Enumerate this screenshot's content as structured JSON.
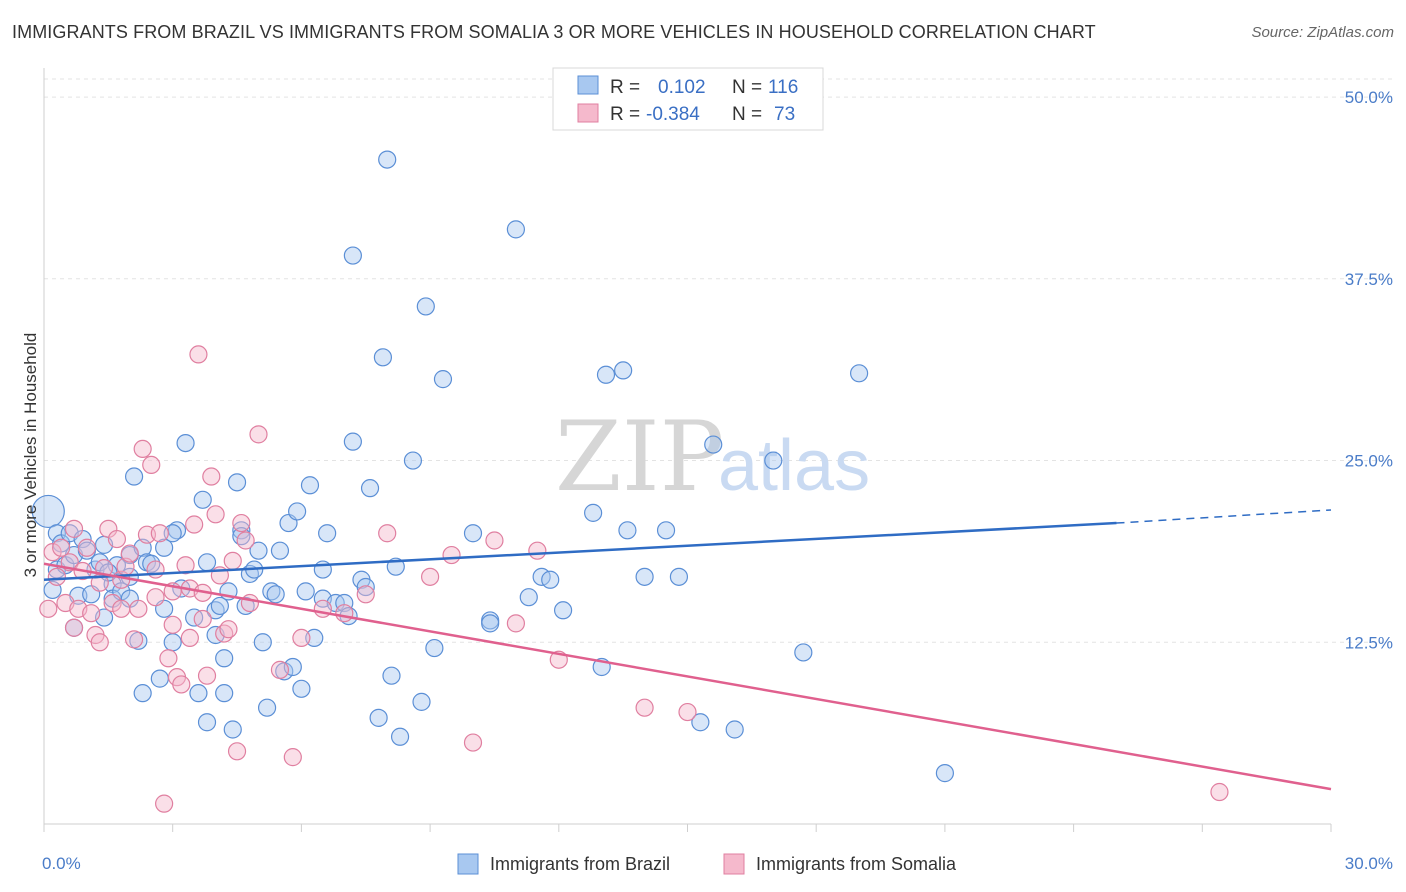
{
  "title": "IMMIGRANTS FROM BRAZIL VS IMMIGRANTS FROM SOMALIA 3 OR MORE VEHICLES IN HOUSEHOLD CORRELATION CHART",
  "source": "Source: ZipAtlas.com",
  "watermark": {
    "zip": "ZIP",
    "atlas": "atlas"
  },
  "legend": {
    "rows": [
      {
        "r_label": "R =",
        "r_value": "0.102",
        "n_label": "N =",
        "n_value": "116"
      },
      {
        "r_label": "R =",
        "r_value": "-0.384",
        "n_label": "N =",
        "n_value": "73"
      }
    ]
  },
  "colors": {
    "brazil_fill": "#a8c8f0",
    "brazil_stroke": "#5b8fd6",
    "brazil_line": "#2f6cc4",
    "somalia_fill": "#f5b9cc",
    "somalia_stroke": "#e07fa0",
    "somalia_line": "#e0608e",
    "grid": "#e3e3e3",
    "tick_label": "#4a7cc8"
  },
  "chart_data": {
    "type": "scatter",
    "title": "IMMIGRANTS FROM BRAZIL VS IMMIGRANTS FROM SOMALIA 3 OR MORE VEHICLES IN HOUSEHOLD CORRELATION CHART",
    "xlabel": "",
    "ylabel": "3 or more Vehicles in Household",
    "xlim": [
      0,
      30
    ],
    "ylim": [
      0,
      52
    ],
    "x_tick_labels": [
      "0.0%",
      "30.0%"
    ],
    "y_ticks": [
      12.5,
      25,
      37.5,
      50
    ],
    "y_tick_labels": [
      "12.5%",
      "25.0%",
      "37.5%",
      "50.0%"
    ],
    "grid": true,
    "legend_position": "top-center",
    "series": [
      {
        "name": "Immigrants from Brazil",
        "r": 0.102,
        "n": 116,
        "trend": {
          "x": [
            0,
            25
          ],
          "y": [
            16.8,
            20.7
          ],
          "dashed_extension": {
            "x": [
              25,
              30
            ],
            "y": [
              20.7,
              21.6
            ]
          }
        },
        "points": [
          [
            0.1,
            21.5
          ],
          [
            0.2,
            16.1
          ],
          [
            0.3,
            20.0
          ],
          [
            0.3,
            17.5
          ],
          [
            0.4,
            19.3
          ],
          [
            0.5,
            17.8
          ],
          [
            0.6,
            20.0
          ],
          [
            0.7,
            18.5
          ],
          [
            0.7,
            13.5
          ],
          [
            0.8,
            15.7
          ],
          [
            0.9,
            19.6
          ],
          [
            1.0,
            18.8
          ],
          [
            1.1,
            15.8
          ],
          [
            1.2,
            17.5
          ],
          [
            1.3,
            18.0
          ],
          [
            1.4,
            19.2
          ],
          [
            1.4,
            14.2
          ],
          [
            1.6,
            16.5
          ],
          [
            1.6,
            15.5
          ],
          [
            1.7,
            17.8
          ],
          [
            1.8,
            16.0
          ],
          [
            2.0,
            18.5
          ],
          [
            2.0,
            15.5
          ],
          [
            2.1,
            23.9
          ],
          [
            2.2,
            12.6
          ],
          [
            2.3,
            9.0
          ],
          [
            2.3,
            19.0
          ],
          [
            2.4,
            18.0
          ],
          [
            2.5,
            17.9
          ],
          [
            2.7,
            10.0
          ],
          [
            2.8,
            14.8
          ],
          [
            2.8,
            19.0
          ],
          [
            3.0,
            12.5
          ],
          [
            3.1,
            20.2
          ],
          [
            3.2,
            16.2
          ],
          [
            3.3,
            26.2
          ],
          [
            3.5,
            14.2
          ],
          [
            3.6,
            9.0
          ],
          [
            3.7,
            22.3
          ],
          [
            3.8,
            7.0
          ],
          [
            3.8,
            18.0
          ],
          [
            4.0,
            14.7
          ],
          [
            4.0,
            13.0
          ],
          [
            4.1,
            15.0
          ],
          [
            4.2,
            11.4
          ],
          [
            4.2,
            9.0
          ],
          [
            4.3,
            16.0
          ],
          [
            4.4,
            6.5
          ],
          [
            4.5,
            23.5
          ],
          [
            4.6,
            20.2
          ],
          [
            4.6,
            19.8
          ],
          [
            4.7,
            15.0
          ],
          [
            4.8,
            17.2
          ],
          [
            4.9,
            17.5
          ],
          [
            5.0,
            18.8
          ],
          [
            5.1,
            12.5
          ],
          [
            5.2,
            8.0
          ],
          [
            5.3,
            16.0
          ],
          [
            5.4,
            15.8
          ],
          [
            5.5,
            18.8
          ],
          [
            5.6,
            10.5
          ],
          [
            5.7,
            20.7
          ],
          [
            5.8,
            10.8
          ],
          [
            5.9,
            21.5
          ],
          [
            6.0,
            9.3
          ],
          [
            6.1,
            16.0
          ],
          [
            6.2,
            23.3
          ],
          [
            6.3,
            12.8
          ],
          [
            6.5,
            15.5
          ],
          [
            6.5,
            17.5
          ],
          [
            6.6,
            20.0
          ],
          [
            6.8,
            15.2
          ],
          [
            7.0,
            15.2
          ],
          [
            7.1,
            14.3
          ],
          [
            7.2,
            26.3
          ],
          [
            7.2,
            39.1
          ],
          [
            7.4,
            16.8
          ],
          [
            7.5,
            16.3
          ],
          [
            7.6,
            23.1
          ],
          [
            7.8,
            7.3
          ],
          [
            7.9,
            32.1
          ],
          [
            8.0,
            45.7
          ],
          [
            8.1,
            10.2
          ],
          [
            8.2,
            17.7
          ],
          [
            8.3,
            6.0
          ],
          [
            8.6,
            25.0
          ],
          [
            8.8,
            8.4
          ],
          [
            8.9,
            35.6
          ],
          [
            9.1,
            12.1
          ],
          [
            9.3,
            30.6
          ],
          [
            10.0,
            20.0
          ],
          [
            10.4,
            14.0
          ],
          [
            10.4,
            13.8
          ],
          [
            11.0,
            40.9
          ],
          [
            11.3,
            15.6
          ],
          [
            11.6,
            17.0
          ],
          [
            11.8,
            16.8
          ],
          [
            12.1,
            14.7
          ],
          [
            12.8,
            21.4
          ],
          [
            13.0,
            10.8
          ],
          [
            13.1,
            30.9
          ],
          [
            13.5,
            31.2
          ],
          [
            13.6,
            20.2
          ],
          [
            14.0,
            17.0
          ],
          [
            14.5,
            20.2
          ],
          [
            14.8,
            17.0
          ],
          [
            15.3,
            7.0
          ],
          [
            15.6,
            26.1
          ],
          [
            16.1,
            6.5
          ],
          [
            17.0,
            25.0
          ],
          [
            17.7,
            11.8
          ],
          [
            19.0,
            31.0
          ],
          [
            21.0,
            3.5
          ],
          [
            2.0,
            17.0
          ],
          [
            3.0,
            20.0
          ],
          [
            1.5,
            17.3
          ]
        ]
      },
      {
        "name": "Immigrants from Somalia",
        "r": -0.384,
        "n": 73,
        "trend": {
          "x": [
            0,
            30
          ],
          "y": [
            17.9,
            2.4
          ]
        },
        "points": [
          [
            0.1,
            14.8
          ],
          [
            0.2,
            18.7
          ],
          [
            0.3,
            17.0
          ],
          [
            0.4,
            19.0
          ],
          [
            0.5,
            15.2
          ],
          [
            0.6,
            18.0
          ],
          [
            0.7,
            20.3
          ],
          [
            0.8,
            14.8
          ],
          [
            0.9,
            17.4
          ],
          [
            1.0,
            19.0
          ],
          [
            1.1,
            14.5
          ],
          [
            1.2,
            13.0
          ],
          [
            1.3,
            12.5
          ],
          [
            1.4,
            17.6
          ],
          [
            1.5,
            20.3
          ],
          [
            1.6,
            15.2
          ],
          [
            1.7,
            19.6
          ],
          [
            1.8,
            16.8
          ],
          [
            1.8,
            14.8
          ],
          [
            1.9,
            17.7
          ],
          [
            2.0,
            18.6
          ],
          [
            2.1,
            12.7
          ],
          [
            2.2,
            14.8
          ],
          [
            2.3,
            25.8
          ],
          [
            2.4,
            19.9
          ],
          [
            2.5,
            24.7
          ],
          [
            2.6,
            17.5
          ],
          [
            2.7,
            20.0
          ],
          [
            2.8,
            1.4
          ],
          [
            2.9,
            11.4
          ],
          [
            3.0,
            13.7
          ],
          [
            3.1,
            10.1
          ],
          [
            3.2,
            9.6
          ],
          [
            3.3,
            17.8
          ],
          [
            3.4,
            16.2
          ],
          [
            3.4,
            12.8
          ],
          [
            3.5,
            20.6
          ],
          [
            3.6,
            32.3
          ],
          [
            3.7,
            15.9
          ],
          [
            3.7,
            14.1
          ],
          [
            3.8,
            10.2
          ],
          [
            3.9,
            23.9
          ],
          [
            4.0,
            21.3
          ],
          [
            4.1,
            17.1
          ],
          [
            4.2,
            13.1
          ],
          [
            4.3,
            13.4
          ],
          [
            4.4,
            18.1
          ],
          [
            4.5,
            5.0
          ],
          [
            4.6,
            20.7
          ],
          [
            4.7,
            19.5
          ],
          [
            4.8,
            15.2
          ],
          [
            5.0,
            26.8
          ],
          [
            5.5,
            10.6
          ],
          [
            5.8,
            4.6
          ],
          [
            6.0,
            12.8
          ],
          [
            6.5,
            14.8
          ],
          [
            7.0,
            14.5
          ],
          [
            7.5,
            15.8
          ],
          [
            8.0,
            20.0
          ],
          [
            9.0,
            17.0
          ],
          [
            9.5,
            18.5
          ],
          [
            10.0,
            5.6
          ],
          [
            10.5,
            19.5
          ],
          [
            11.0,
            13.8
          ],
          [
            11.5,
            18.8
          ],
          [
            12.0,
            11.3
          ],
          [
            14.0,
            8.0
          ],
          [
            15.0,
            7.7
          ],
          [
            27.4,
            2.2
          ],
          [
            3.0,
            16.0
          ],
          [
            2.6,
            15.6
          ],
          [
            1.3,
            16.6
          ],
          [
            0.7,
            13.5
          ]
        ]
      }
    ]
  }
}
